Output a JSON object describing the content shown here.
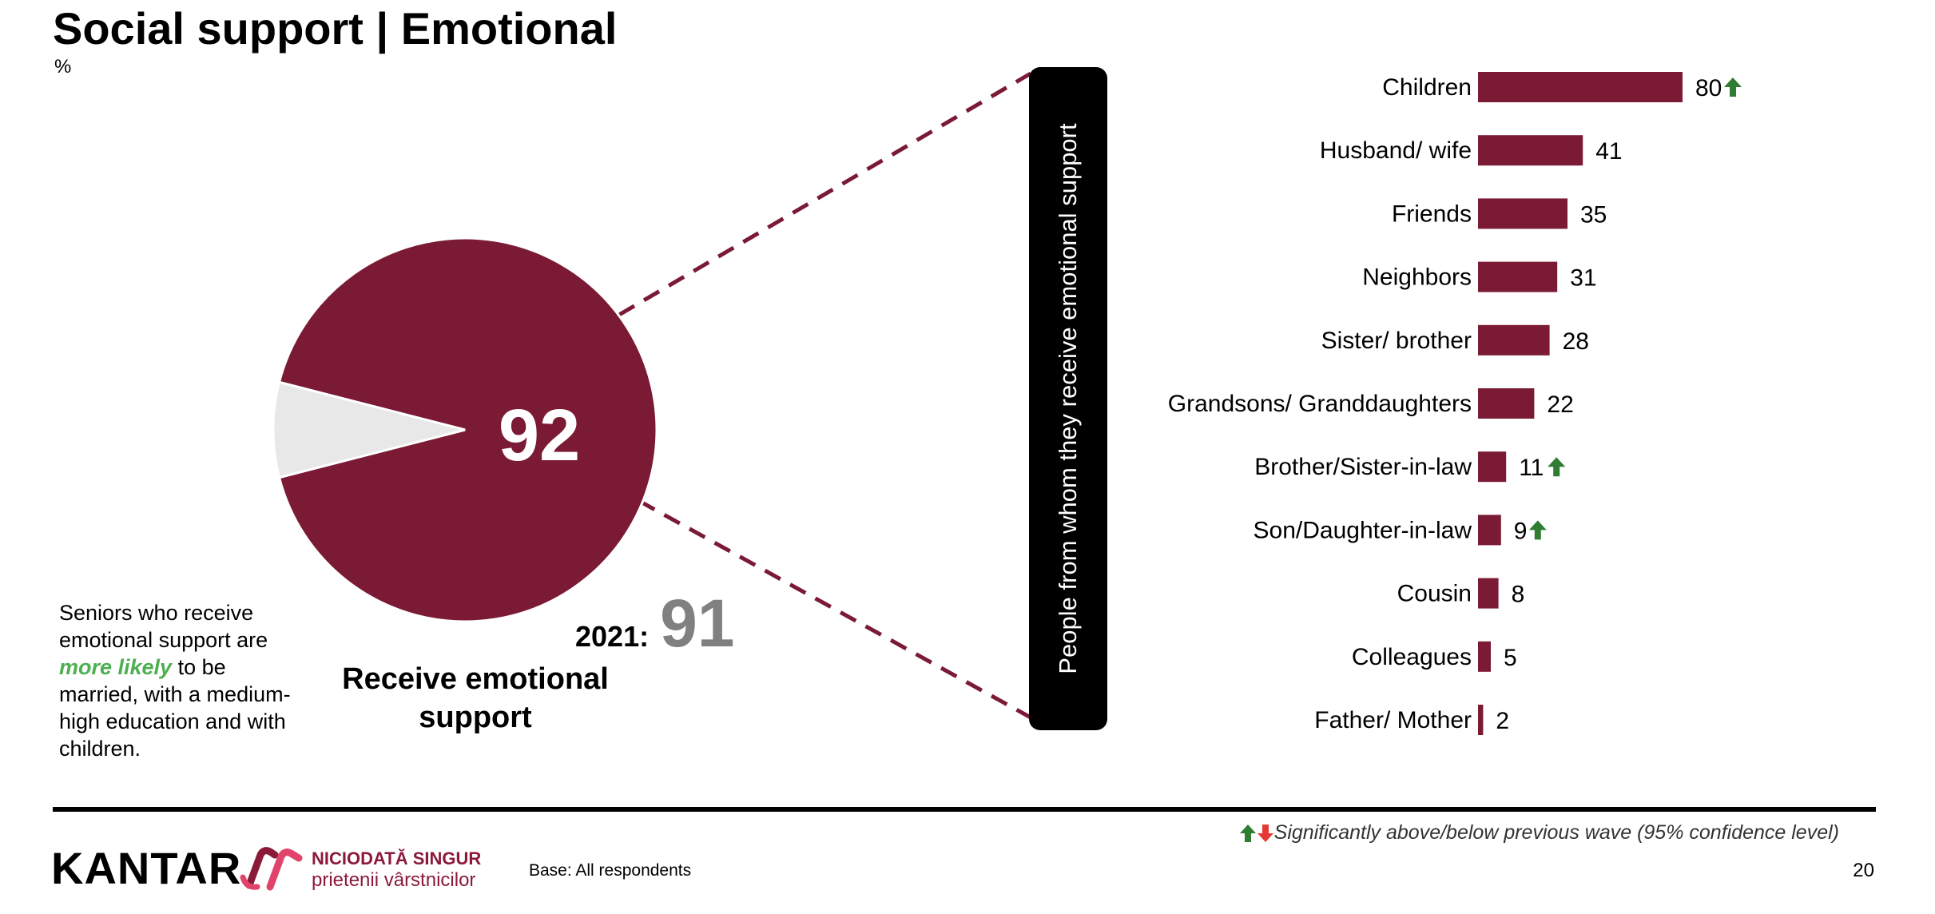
{
  "header": {
    "title": "Social support | Emotional",
    "unit": "%"
  },
  "pie_section": {
    "value_label": "92",
    "previous_label": "2021:",
    "previous_value": "91",
    "caption": "Receive emotional support",
    "note_before": "Seniors who receive emotional support are ",
    "note_highlight": "more likely",
    "note_after": " to be married, with a medium-high education and with children."
  },
  "bar_section": {
    "vertical_label": "People from whom they receive emotional support"
  },
  "footer": {
    "legend": "Significantly above/below previous wave (95% confidence level)",
    "logo": "KANTAR",
    "brand_line1": "NICIODATĂ SINGUR",
    "brand_line2": "prietenii vârstnicilor",
    "base": "Base: All respondents",
    "page_number": "20"
  },
  "colors": {
    "primary": "#7b1a35",
    "pie_rest": "#e8e8e8",
    "arrow_up": "#2e7d32",
    "arrow_down": "#e53935",
    "prev_value": "#808080"
  },
  "chart_data": [
    {
      "type": "pie",
      "title": "",
      "slices": [
        {
          "label": "Receive emotional support",
          "value": 92
        },
        {
          "label": "",
          "value": 8
        }
      ]
    },
    {
      "type": "bar",
      "orientation": "horizontal",
      "title": "",
      "categories": [
        "Children",
        "Husband/ wife",
        "Friends",
        "Neighbors",
        "Sister/ brother",
        "Grandsons/ Granddaughters",
        "Brother/Sister-in-law",
        "Son/Daughter-in-law",
        "Cousin",
        "Colleagues",
        "Father/ Mother"
      ],
      "values": [
        80,
        41,
        35,
        31,
        28,
        22,
        11,
        9,
        8,
        5,
        2
      ],
      "significance": [
        "up",
        "",
        "",
        "",
        "",
        "",
        "up",
        "up",
        "",
        "",
        ""
      ],
      "xlim": [
        0,
        100
      ],
      "grid": false
    }
  ]
}
